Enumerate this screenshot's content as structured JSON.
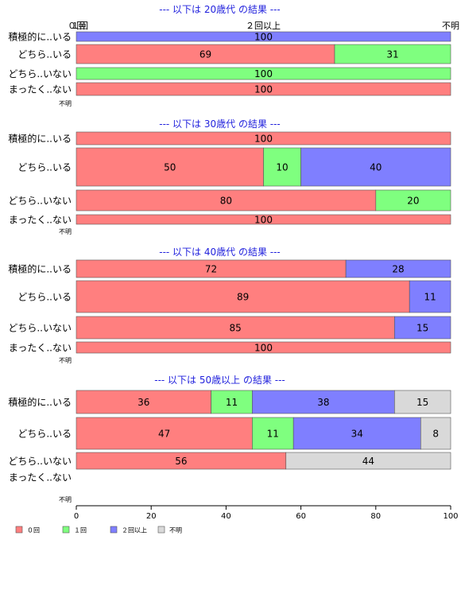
{
  "chart_data": {
    "type": "bar",
    "orientation": "horizontal",
    "stacked": true,
    "xlim": [
      0,
      100
    ],
    "x_ticks": [
      "0",
      "20",
      "40",
      "60",
      "80",
      "100"
    ],
    "top_axis_labels": [
      "０回",
      "１回",
      "２回以上",
      "不明"
    ],
    "legend": {
      "placement": "bottom-left",
      "items": [
        {
          "label": "０回",
          "color": "#ff7f7f"
        },
        {
          "label": "１回",
          "color": "#7fff7f"
        },
        {
          "label": "２回以上",
          "color": "#7f7fff"
        },
        {
          "label": "不明",
          "color": "#d9d9d9"
        }
      ]
    },
    "panels": [
      {
        "title": "--- 以下は 20歳代 の結果 ---",
        "rows": [
          {
            "label": "積極的に..いる",
            "values": [
              0,
              0,
              100,
              0
            ]
          },
          {
            "label": "どちら..いる",
            "values": [
              69,
              31,
              0,
              0
            ]
          },
          {
            "label": "どちら..いない",
            "values": [
              0,
              100,
              0,
              0
            ]
          },
          {
            "label": "まったく..ない",
            "values": [
              100,
              0,
              0,
              0
            ]
          },
          {
            "label": "不明",
            "values": [
              0,
              0,
              0,
              0
            ]
          }
        ]
      },
      {
        "title": "--- 以下は 30歳代 の結果 ---",
        "rows": [
          {
            "label": "積極的に..いる",
            "values": [
              100,
              0,
              0,
              0
            ]
          },
          {
            "label": "どちら..いる",
            "values": [
              50,
              10,
              40,
              0
            ]
          },
          {
            "label": "どちら..いない",
            "values": [
              80,
              20,
              0,
              0
            ]
          },
          {
            "label": "まったく..ない",
            "values": [
              100,
              0,
              0,
              0
            ]
          },
          {
            "label": "不明",
            "values": [
              0,
              0,
              0,
              0
            ]
          }
        ]
      },
      {
        "title": "--- 以下は 40歳代 の結果 ---",
        "rows": [
          {
            "label": "積極的に..いる",
            "values": [
              72,
              0,
              28,
              0
            ]
          },
          {
            "label": "どちら..いる",
            "values": [
              89,
              0,
              11,
              0
            ]
          },
          {
            "label": "どちら..いない",
            "values": [
              85,
              0,
              15,
              0
            ]
          },
          {
            "label": "まったく..ない",
            "values": [
              100,
              0,
              0,
              0
            ]
          },
          {
            "label": "不明",
            "values": [
              0,
              0,
              0,
              0
            ]
          }
        ]
      },
      {
        "title": "--- 以下は 50歳以上 の結果 ---",
        "rows": [
          {
            "label": "積極的に..いる",
            "values": [
              36,
              11,
              38,
              15
            ]
          },
          {
            "label": "どちら..いる",
            "values": [
              47,
              11,
              34,
              8
            ]
          },
          {
            "label": "どちら..いない",
            "values": [
              56,
              0,
              0,
              44
            ]
          },
          {
            "label": "まったく..ない",
            "values": [
              0,
              0,
              0,
              0
            ]
          },
          {
            "label": "不明",
            "values": [
              0,
              0,
              0,
              0
            ]
          }
        ]
      }
    ]
  }
}
